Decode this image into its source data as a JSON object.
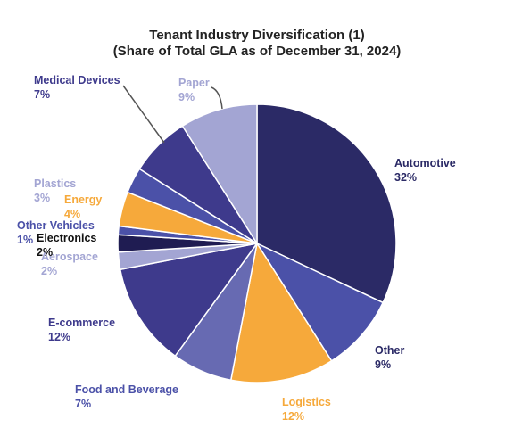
{
  "chart_data": {
    "type": "pie",
    "title": "Tenant Industry Diversification (1)",
    "subtitle": "(Share of Total GLA as of December 31, 2024)",
    "slices": [
      {
        "name": "Automotive",
        "label": "32%",
        "value": 32,
        "color": "#2b2a66",
        "label_color": "#2b2a66"
      },
      {
        "name": "Other",
        "label": "9%",
        "value": 9,
        "color": "#4b51a8",
        "label_color": "#2b2a66"
      },
      {
        "name": "Logistics",
        "label": "12%",
        "value": 12,
        "color": "#f6a93b",
        "label_color": "#f6a93b"
      },
      {
        "name": "Food and Beverage",
        "label": "7%",
        "value": 7,
        "color": "#676ab2",
        "label_color": "#4b51a8"
      },
      {
        "name": "E-commerce",
        "label": "12%",
        "value": 12,
        "color": "#3e3a8c",
        "label_color": "#3e3a8c"
      },
      {
        "name": "Aerospace",
        "label": "2%",
        "value": 2,
        "color": "#a3a5d3",
        "label_color": "#a3a5d3"
      },
      {
        "name": "Electronics",
        "label": "2%",
        "value": 2,
        "color": "#1f1c52",
        "label_color": "#111111"
      },
      {
        "name": "Other Vehicles",
        "label": "1%",
        "value": 1,
        "color": "#4b51a8",
        "label_color": "#4b51a8"
      },
      {
        "name": "Energy",
        "label": "4%",
        "value": 4,
        "color": "#f6a93b",
        "label_color": "#f6a93b"
      },
      {
        "name": "Plastics",
        "label": "3%",
        "value": 3,
        "color": "#4b51a8",
        "label_color": "#a3a5d3"
      },
      {
        "name": "Medical Devices",
        "label": "7%",
        "value": 7,
        "color": "#3e3a8c",
        "label_color": "#3e3a8c"
      },
      {
        "name": "Paper",
        "label": "9%",
        "value": 9,
        "color": "#a3a5d3",
        "label_color": "#a3a5d3"
      }
    ]
  }
}
